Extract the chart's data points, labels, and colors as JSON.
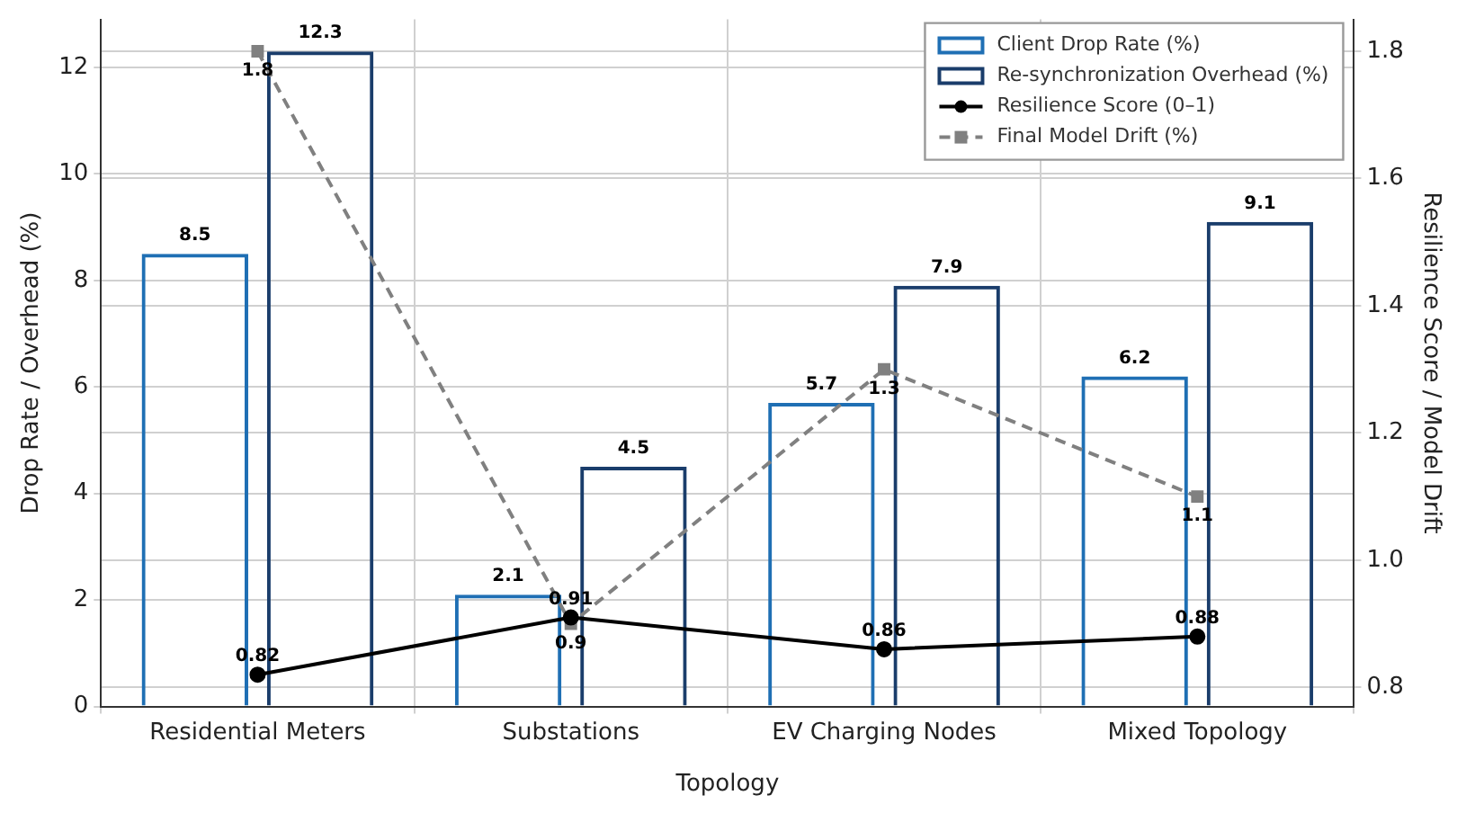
{
  "chart_data": {
    "type": "bar",
    "xlabel": "Topology",
    "ylabel": "Drop Rate / Overhead (%)",
    "y2label": "Resilience Score / Model Drift",
    "categories": [
      "Residential Meters",
      "Substations",
      "EV Charging Nodes",
      "Mixed Topology"
    ],
    "series": [
      {
        "name": "Client Drop Rate (%)",
        "color": "#1f6fb4",
        "values": [
          8.5,
          2.1,
          5.7,
          6.2
        ]
      },
      {
        "name": "Re-synchronization Overhead (%)",
        "color": "#1a3d6b",
        "values": [
          12.3,
          4.5,
          7.9,
          9.1
        ]
      },
      {
        "name": "Resilience Score (0–1)",
        "type": "line",
        "axis": "y2",
        "color": "#000000",
        "marker": "circle",
        "line_style": "solid",
        "values": [
          0.82,
          0.91,
          0.86,
          0.88
        ]
      },
      {
        "name": "Final Model Drift (%)",
        "type": "line",
        "axis": "y2",
        "color": "#808080",
        "marker": "square",
        "line_style": "dashed",
        "values": [
          1.8,
          0.9,
          1.3,
          1.1
        ]
      }
    ],
    "ylim": [
      0,
      12.9
    ],
    "yticks": [
      0,
      2,
      4,
      6,
      8,
      10,
      12
    ],
    "y2lim": [
      0.77,
      1.85
    ],
    "y2ticks": [
      0.8,
      {
        "value": 1.0,
        "label": "1.0"
      },
      1.2,
      1.4,
      1.6,
      1.8
    ],
    "grid": true,
    "legend": "top right",
    "data_labels": true
  }
}
